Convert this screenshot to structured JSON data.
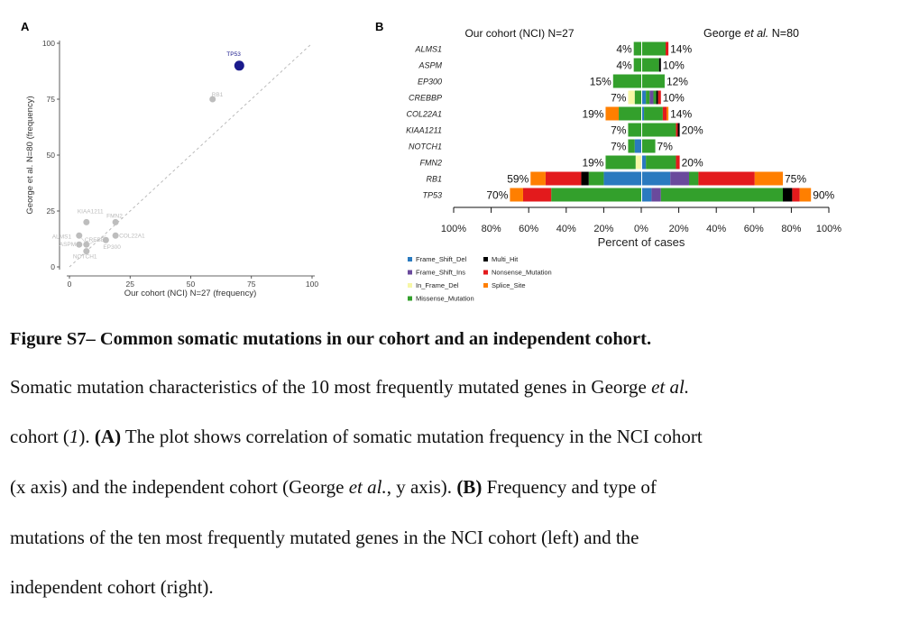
{
  "panel_labels": {
    "a": "A",
    "b": "B"
  },
  "colors": {
    "Frame_Shift_Del": "#2a7abf",
    "Frame_Shift_Ins": "#6a4a9c",
    "In_Frame_Del": "#f7f7a6",
    "Missense_Mutation": "#33a02c",
    "Multi_Hit": "#000000",
    "Nonsense_Mutation": "#e31a1c",
    "Splice_Site": "#ff7f00",
    "tp53_point": "#1a1a8c",
    "grey_point": "#bdbdbd"
  },
  "chart_data": [
    {
      "type": "scatter",
      "xlabel": "Our cohort (NCI) N=27 (frequency)",
      "ylabel": "George et al. N=80 (frequency)",
      "xlim": [
        0,
        100
      ],
      "ylim": [
        0,
        100
      ],
      "xticks": [
        "0",
        "25",
        "50",
        "75",
        "100"
      ],
      "yticks": [
        "0",
        "25",
        "50",
        "75",
        "100"
      ],
      "reference_line": "y = x (dashed)",
      "points": [
        {
          "label": "TP53",
          "x": 70,
          "y": 90,
          "highlight": true
        },
        {
          "label": "RB1",
          "x": 59,
          "y": 75
        },
        {
          "label": "KIAA1211",
          "x": 7,
          "y": 20
        },
        {
          "label": "FMN2",
          "x": 19,
          "y": 20
        },
        {
          "label": "ALMS1",
          "x": 4,
          "y": 14
        },
        {
          "label": "CREBBP",
          "x": 7,
          "y": 10
        },
        {
          "label": "COL22A1",
          "x": 19,
          "y": 14
        },
        {
          "label": "ASPM",
          "x": 4,
          "y": 10
        },
        {
          "label": "EP300",
          "x": 15,
          "y": 12
        },
        {
          "label": "NOTCH1",
          "x": 7,
          "y": 7
        }
      ]
    },
    {
      "type": "bar",
      "orientation": "horizontal, back-to-back",
      "left_title": "Our cohort (NCI) N=27",
      "right_title_prefix": "George ",
      "right_title_italic": "et al.",
      "right_title_suffix": " N=80",
      "xlabel": "Percent of cases",
      "xticks": [
        "100%",
        "80%",
        "60%",
        "40%",
        "20%",
        "0%",
        "20%",
        "40%",
        "60%",
        "80%",
        "100%"
      ],
      "genes": [
        {
          "gene": "ALMS1",
          "left_label": "4%",
          "right_label": "14%",
          "left": [
            [
              "Missense_Mutation",
              4
            ]
          ],
          "right": [
            [
              "Missense_Mutation",
              12.5
            ],
            [
              "Nonsense_Mutation",
              1.5
            ]
          ]
        },
        {
          "gene": "ASPM",
          "left_label": "4%",
          "right_label": "10%",
          "left": [
            [
              "Missense_Mutation",
              4
            ]
          ],
          "right": [
            [
              "Missense_Mutation",
              9
            ],
            [
              "Multi_Hit",
              1
            ]
          ]
        },
        {
          "gene": "EP300",
          "left_label": "15%",
          "right_label": "12%",
          "left": [
            [
              "Missense_Mutation",
              15
            ]
          ],
          "right": [
            [
              "Missense_Mutation",
              12
            ]
          ]
        },
        {
          "gene": "CREBBP",
          "left_label": "7%",
          "right_label": "10%",
          "left": [
            [
              "Missense_Mutation",
              3.5
            ],
            [
              "In_Frame_Del",
              3.5
            ]
          ],
          "right": [
            [
              "Frame_Shift_Del",
              2
            ],
            [
              "Missense_Mutation",
              2
            ],
            [
              "Frame_Shift_Ins",
              2
            ],
            [
              "Missense_Mutation",
              1.5
            ],
            [
              "Multi_Hit",
              1
            ],
            [
              "Nonsense_Mutation",
              1.5
            ]
          ]
        },
        {
          "gene": "COL22A1",
          "left_label": "19%",
          "right_label": "14%",
          "left": [
            [
              "Missense_Mutation",
              12
            ],
            [
              "Splice_Site",
              7
            ]
          ],
          "right": [
            [
              "Frame_Shift_Del",
              1
            ],
            [
              "Missense_Mutation",
              10
            ],
            [
              "Nonsense_Mutation",
              2
            ],
            [
              "Splice_Site",
              1
            ]
          ]
        },
        {
          "gene": "KIAA1211",
          "left_label": "7%",
          "right_label": "20%",
          "left": [
            [
              "Missense_Mutation",
              7
            ]
          ],
          "right": [
            [
              "Missense_Mutation",
              18
            ],
            [
              "Nonsense_Mutation",
              1
            ],
            [
              "Multi_Hit",
              1
            ]
          ]
        },
        {
          "gene": "NOTCH1",
          "left_label": "7%",
          "right_label": "7%",
          "left": [
            [
              "Frame_Shift_Del",
              3.5
            ],
            [
              "Missense_Mutation",
              3.5
            ]
          ],
          "right": [
            [
              "Missense_Mutation",
              7
            ]
          ]
        },
        {
          "gene": "FMN2",
          "left_label": "19%",
          "right_label": "20%",
          "left": [
            [
              "In_Frame_Del",
              3
            ],
            [
              "Missense_Mutation",
              16
            ]
          ],
          "right": [
            [
              "Frame_Shift_Del",
              2
            ],
            [
              "Missense_Mutation",
              16
            ],
            [
              "Nonsense_Mutation",
              2
            ]
          ]
        },
        {
          "gene": "RB1",
          "left_label": "59%",
          "right_label": "75%",
          "left": [
            [
              "Frame_Shift_Del",
              20
            ],
            [
              "Missense_Mutation",
              8
            ],
            [
              "Multi_Hit",
              4
            ],
            [
              "Nonsense_Mutation",
              19
            ],
            [
              "Splice_Site",
              8
            ]
          ],
          "right": [
            [
              "Frame_Shift_Del",
              15
            ],
            [
              "Frame_Shift_Ins",
              10
            ],
            [
              "Missense_Mutation",
              5
            ],
            [
              "Nonsense_Mutation",
              30
            ],
            [
              "Splice_Site",
              15
            ]
          ]
        },
        {
          "gene": "TP53",
          "left_label": "70%",
          "right_label": "90%",
          "left": [
            [
              "Missense_Mutation",
              48
            ],
            [
              "Nonsense_Mutation",
              15
            ],
            [
              "Splice_Site",
              7
            ]
          ],
          "right": [
            [
              "Frame_Shift_Del",
              5
            ],
            [
              "Frame_Shift_Ins",
              5
            ],
            [
              "Missense_Mutation",
              65
            ],
            [
              "Multi_Hit",
              5
            ],
            [
              "Nonsense_Mutation",
              4
            ],
            [
              "Splice_Site",
              6
            ]
          ]
        }
      ],
      "legend": [
        {
          "key": "Frame_Shift_Del",
          "label": "Frame_Shift_Del"
        },
        {
          "key": "Frame_Shift_Ins",
          "label": "Frame_Shift_Ins"
        },
        {
          "key": "In_Frame_Del",
          "label": "In_Frame_Del"
        },
        {
          "key": "Missense_Mutation",
          "label": "Missense_Mutation"
        },
        {
          "key": "Multi_Hit",
          "label": "Multi_Hit"
        },
        {
          "key": "Nonsense_Mutation",
          "label": "Nonsense_Mutation"
        },
        {
          "key": "Splice_Site",
          "label": "Splice_Site"
        }
      ]
    }
  ],
  "caption": {
    "title": "Figure S7– Common somatic mutations in our cohort and an independent cohort.",
    "lines": [
      [
        {
          "t": "Somatic mutation characteristics of the 10 most frequently mutated genes in George "
        },
        {
          "t": "et al.",
          "s": "i"
        }
      ],
      [
        {
          "t": "cohort ("
        },
        {
          "t": "1",
          "s": "i"
        },
        {
          "t": "). "
        },
        {
          "t": "(A)",
          "s": "b"
        },
        {
          "t": " The plot shows correlation of somatic mutation frequency in the NCI cohort"
        }
      ],
      [
        {
          "t": "(x axis) and the independent cohort (George "
        },
        {
          "t": "et al.",
          "s": "i"
        },
        {
          "t": ", y axis). "
        },
        {
          "t": "(B)",
          "s": "b"
        },
        {
          "t": " Frequency and type of"
        }
      ],
      [
        {
          "t": "mutations of the ten most frequently mutated genes in the NCI cohort (left) and the"
        }
      ],
      [
        {
          "t": "independent cohort (right)."
        }
      ]
    ]
  }
}
